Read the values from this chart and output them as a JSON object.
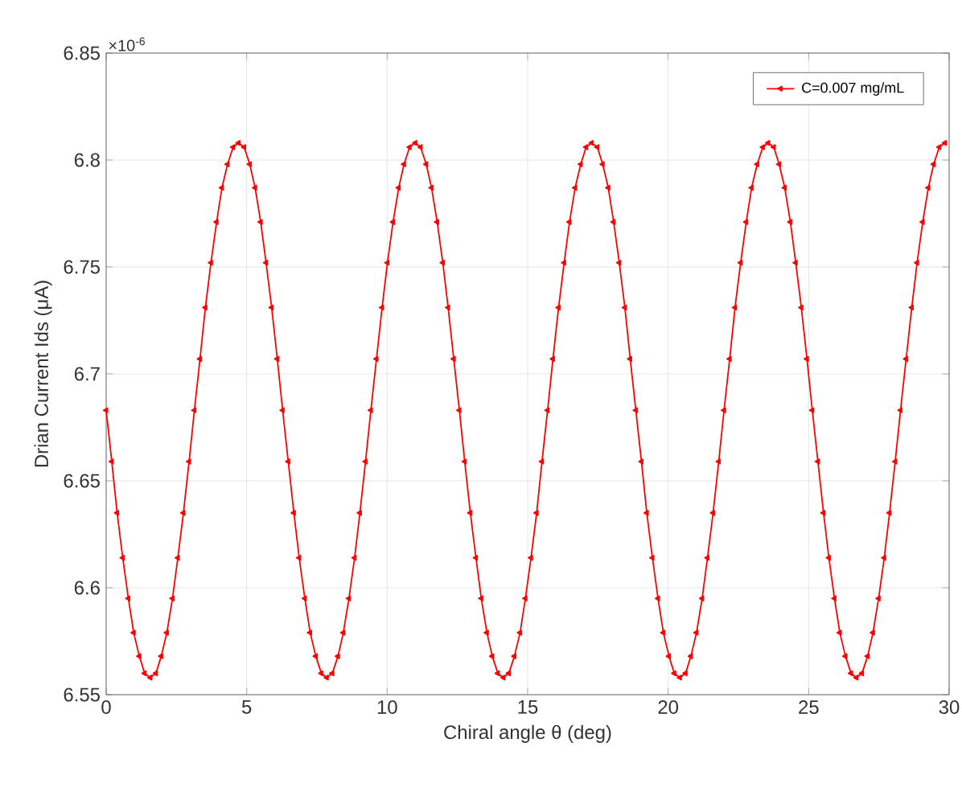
{
  "chart_data": {
    "type": "line",
    "xlabel": "Chiral angle θ (deg)",
    "ylabel": "Drian Current Ids (μA)",
    "annotations": [
      "×10$^{-6}$"
    ],
    "xlim": [
      0,
      30
    ],
    "ylim": [
      6.55,
      6.85
    ],
    "xticks": [
      0,
      5,
      10,
      15,
      20,
      25,
      30
    ],
    "yticks": [
      6.55,
      6.6,
      6.65,
      6.7,
      6.75,
      6.8,
      6.85
    ],
    "grid": true,
    "legend": "top right",
    "marker": "triangle",
    "line_style": "solid",
    "x": [
      0,
      0.2,
      0.39,
      0.59,
      0.79,
      0.98,
      1.18,
      1.37,
      1.57,
      1.77,
      1.96,
      2.16,
      2.36,
      2.55,
      2.75,
      2.95,
      3.14,
      3.34,
      3.53,
      3.73,
      3.93,
      4.12,
      4.32,
      4.52,
      4.71,
      4.91,
      5.11,
      5.3,
      5.5,
      5.69,
      5.89,
      6.09,
      6.28,
      6.48,
      6.68,
      6.87,
      7.07,
      7.26,
      7.46,
      7.66,
      7.85,
      8.05,
      8.25,
      8.44,
      8.64,
      8.84,
      9.03,
      9.23,
      9.42,
      9.62,
      9.82,
      10.01,
      10.21,
      10.41,
      10.6,
      10.8,
      11.0,
      11.19,
      11.39,
      11.58,
      11.78,
      11.98,
      12.17,
      12.37,
      12.57,
      12.76,
      12.96,
      13.16,
      13.35,
      13.55,
      13.74,
      13.94,
      14.14,
      14.33,
      14.53,
      14.73,
      14.92,
      15.12,
      15.32,
      15.51,
      15.71,
      15.9,
      16.1,
      16.3,
      16.49,
      16.69,
      16.89,
      17.08,
      17.28,
      17.48,
      17.67,
      17.87,
      18.06,
      18.26,
      18.46,
      18.65,
      18.85,
      19.05,
      19.24,
      19.44,
      19.64,
      19.83,
      20.03,
      20.22,
      20.42,
      20.62,
      20.81,
      21.01,
      21.21,
      21.4,
      21.6,
      21.8,
      21.99,
      22.19,
      22.38,
      22.58,
      22.78,
      22.97,
      23.17,
      23.37,
      23.56,
      23.76,
      23.95,
      24.15,
      24.35,
      24.54,
      24.74,
      24.94,
      25.13,
      25.33,
      25.53,
      25.72,
      25.92,
      26.11,
      26.31,
      26.51,
      26.7,
      26.9,
      27.1,
      27.29,
      27.49,
      27.69,
      27.88,
      28.08,
      28.27,
      28.47,
      28.67,
      28.86,
      29.06,
      29.26,
      29.45,
      29.65,
      29.85
    ],
    "series": [
      {
        "name": "C=0.007 mg/mL",
        "color": "#ff0000",
        "values": [
          6.683,
          6.659,
          6.635,
          6.614,
          6.595,
          6.579,
          6.568,
          6.56,
          6.558,
          6.56,
          6.568,
          6.579,
          6.595,
          6.614,
          6.635,
          6.659,
          6.683,
          6.707,
          6.731,
          6.752,
          6.771,
          6.787,
          6.798,
          6.806,
          6.808,
          6.806,
          6.798,
          6.787,
          6.771,
          6.752,
          6.731,
          6.707,
          6.683,
          6.659,
          6.635,
          6.614,
          6.595,
          6.579,
          6.568,
          6.56,
          6.558,
          6.56,
          6.568,
          6.579,
          6.595,
          6.614,
          6.635,
          6.659,
          6.683,
          6.707,
          6.731,
          6.752,
          6.771,
          6.787,
          6.798,
          6.806,
          6.808,
          6.806,
          6.798,
          6.787,
          6.771,
          6.752,
          6.731,
          6.707,
          6.683,
          6.659,
          6.635,
          6.614,
          6.595,
          6.579,
          6.568,
          6.56,
          6.558,
          6.56,
          6.568,
          6.579,
          6.595,
          6.614,
          6.635,
          6.659,
          6.683,
          6.707,
          6.731,
          6.752,
          6.771,
          6.787,
          6.798,
          6.806,
          6.808,
          6.806,
          6.798,
          6.787,
          6.771,
          6.752,
          6.731,
          6.707,
          6.683,
          6.659,
          6.635,
          6.614,
          6.595,
          6.579,
          6.568,
          6.56,
          6.558,
          6.56,
          6.568,
          6.579,
          6.595,
          6.614,
          6.635,
          6.659,
          6.683,
          6.707,
          6.731,
          6.752,
          6.771,
          6.787,
          6.798,
          6.806,
          6.808,
          6.806,
          6.798,
          6.787,
          6.771,
          6.752,
          6.731,
          6.707,
          6.683,
          6.659,
          6.635,
          6.614,
          6.595,
          6.579,
          6.568,
          6.56,
          6.558,
          6.56,
          6.568,
          6.579,
          6.595,
          6.614,
          6.635,
          6.659,
          6.683,
          6.707,
          6.731,
          6.752,
          6.771,
          6.787,
          6.798,
          6.806,
          6.808
        ]
      }
    ]
  }
}
